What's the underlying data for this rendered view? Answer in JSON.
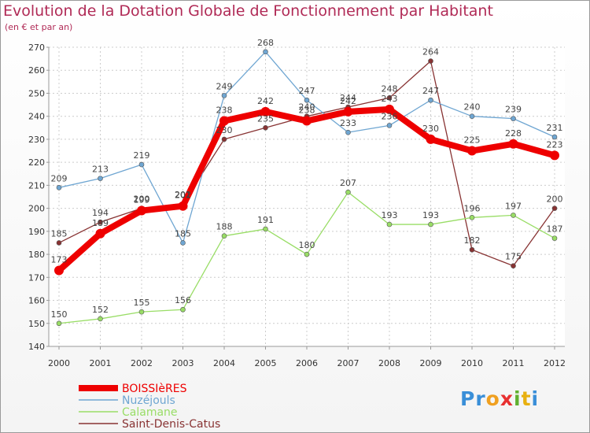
{
  "chart_data": {
    "type": "line",
    "title": "Evolution de la Dotation Globale de Fonctionnement par Habitant",
    "subtitle": "(en € et par an)",
    "x": [
      "2000",
      "2001",
      "2002",
      "2003",
      "2004",
      "2005",
      "2006",
      "2007",
      "2008",
      "2009",
      "2010",
      "2011",
      "2012"
    ],
    "ylim": [
      140,
      270
    ],
    "yticks": [
      140,
      150,
      160,
      170,
      180,
      190,
      200,
      210,
      220,
      230,
      240,
      250,
      260,
      270
    ],
    "grid": true,
    "legend_position": "bottom-left",
    "series": [
      {
        "name": "BOISSIèRES",
        "color": "#ee0000",
        "values": [
          173,
          189,
          199,
          201,
          238,
          242,
          238,
          242,
          243,
          230,
          225,
          228,
          223
        ]
      },
      {
        "name": "Nuzéjouls",
        "color": "#6fa6d2",
        "values": [
          209,
          213,
          219,
          185,
          249,
          268,
          247,
          233,
          236,
          247,
          240,
          239,
          231
        ]
      },
      {
        "name": "Calamane",
        "color": "#99dd66",
        "values": [
          150,
          152,
          155,
          156,
          188,
          191,
          180,
          207,
          193,
          193,
          196,
          197,
          187
        ]
      },
      {
        "name": "Saint-Denis-Catus",
        "color": "#883333",
        "values": [
          185,
          194,
          200,
          202,
          230,
          235,
          240,
          244,
          248,
          264,
          182,
          175,
          200
        ]
      }
    ]
  },
  "logo": {
    "letters": [
      "P",
      "r",
      "o",
      "x",
      "i",
      "t",
      "i"
    ],
    "colors": [
      "#3a8fd8",
      "#3a8fd8",
      "#f0a020",
      "#e83030",
      "#60b030",
      "#e8b010",
      "#3a8fd8"
    ]
  }
}
